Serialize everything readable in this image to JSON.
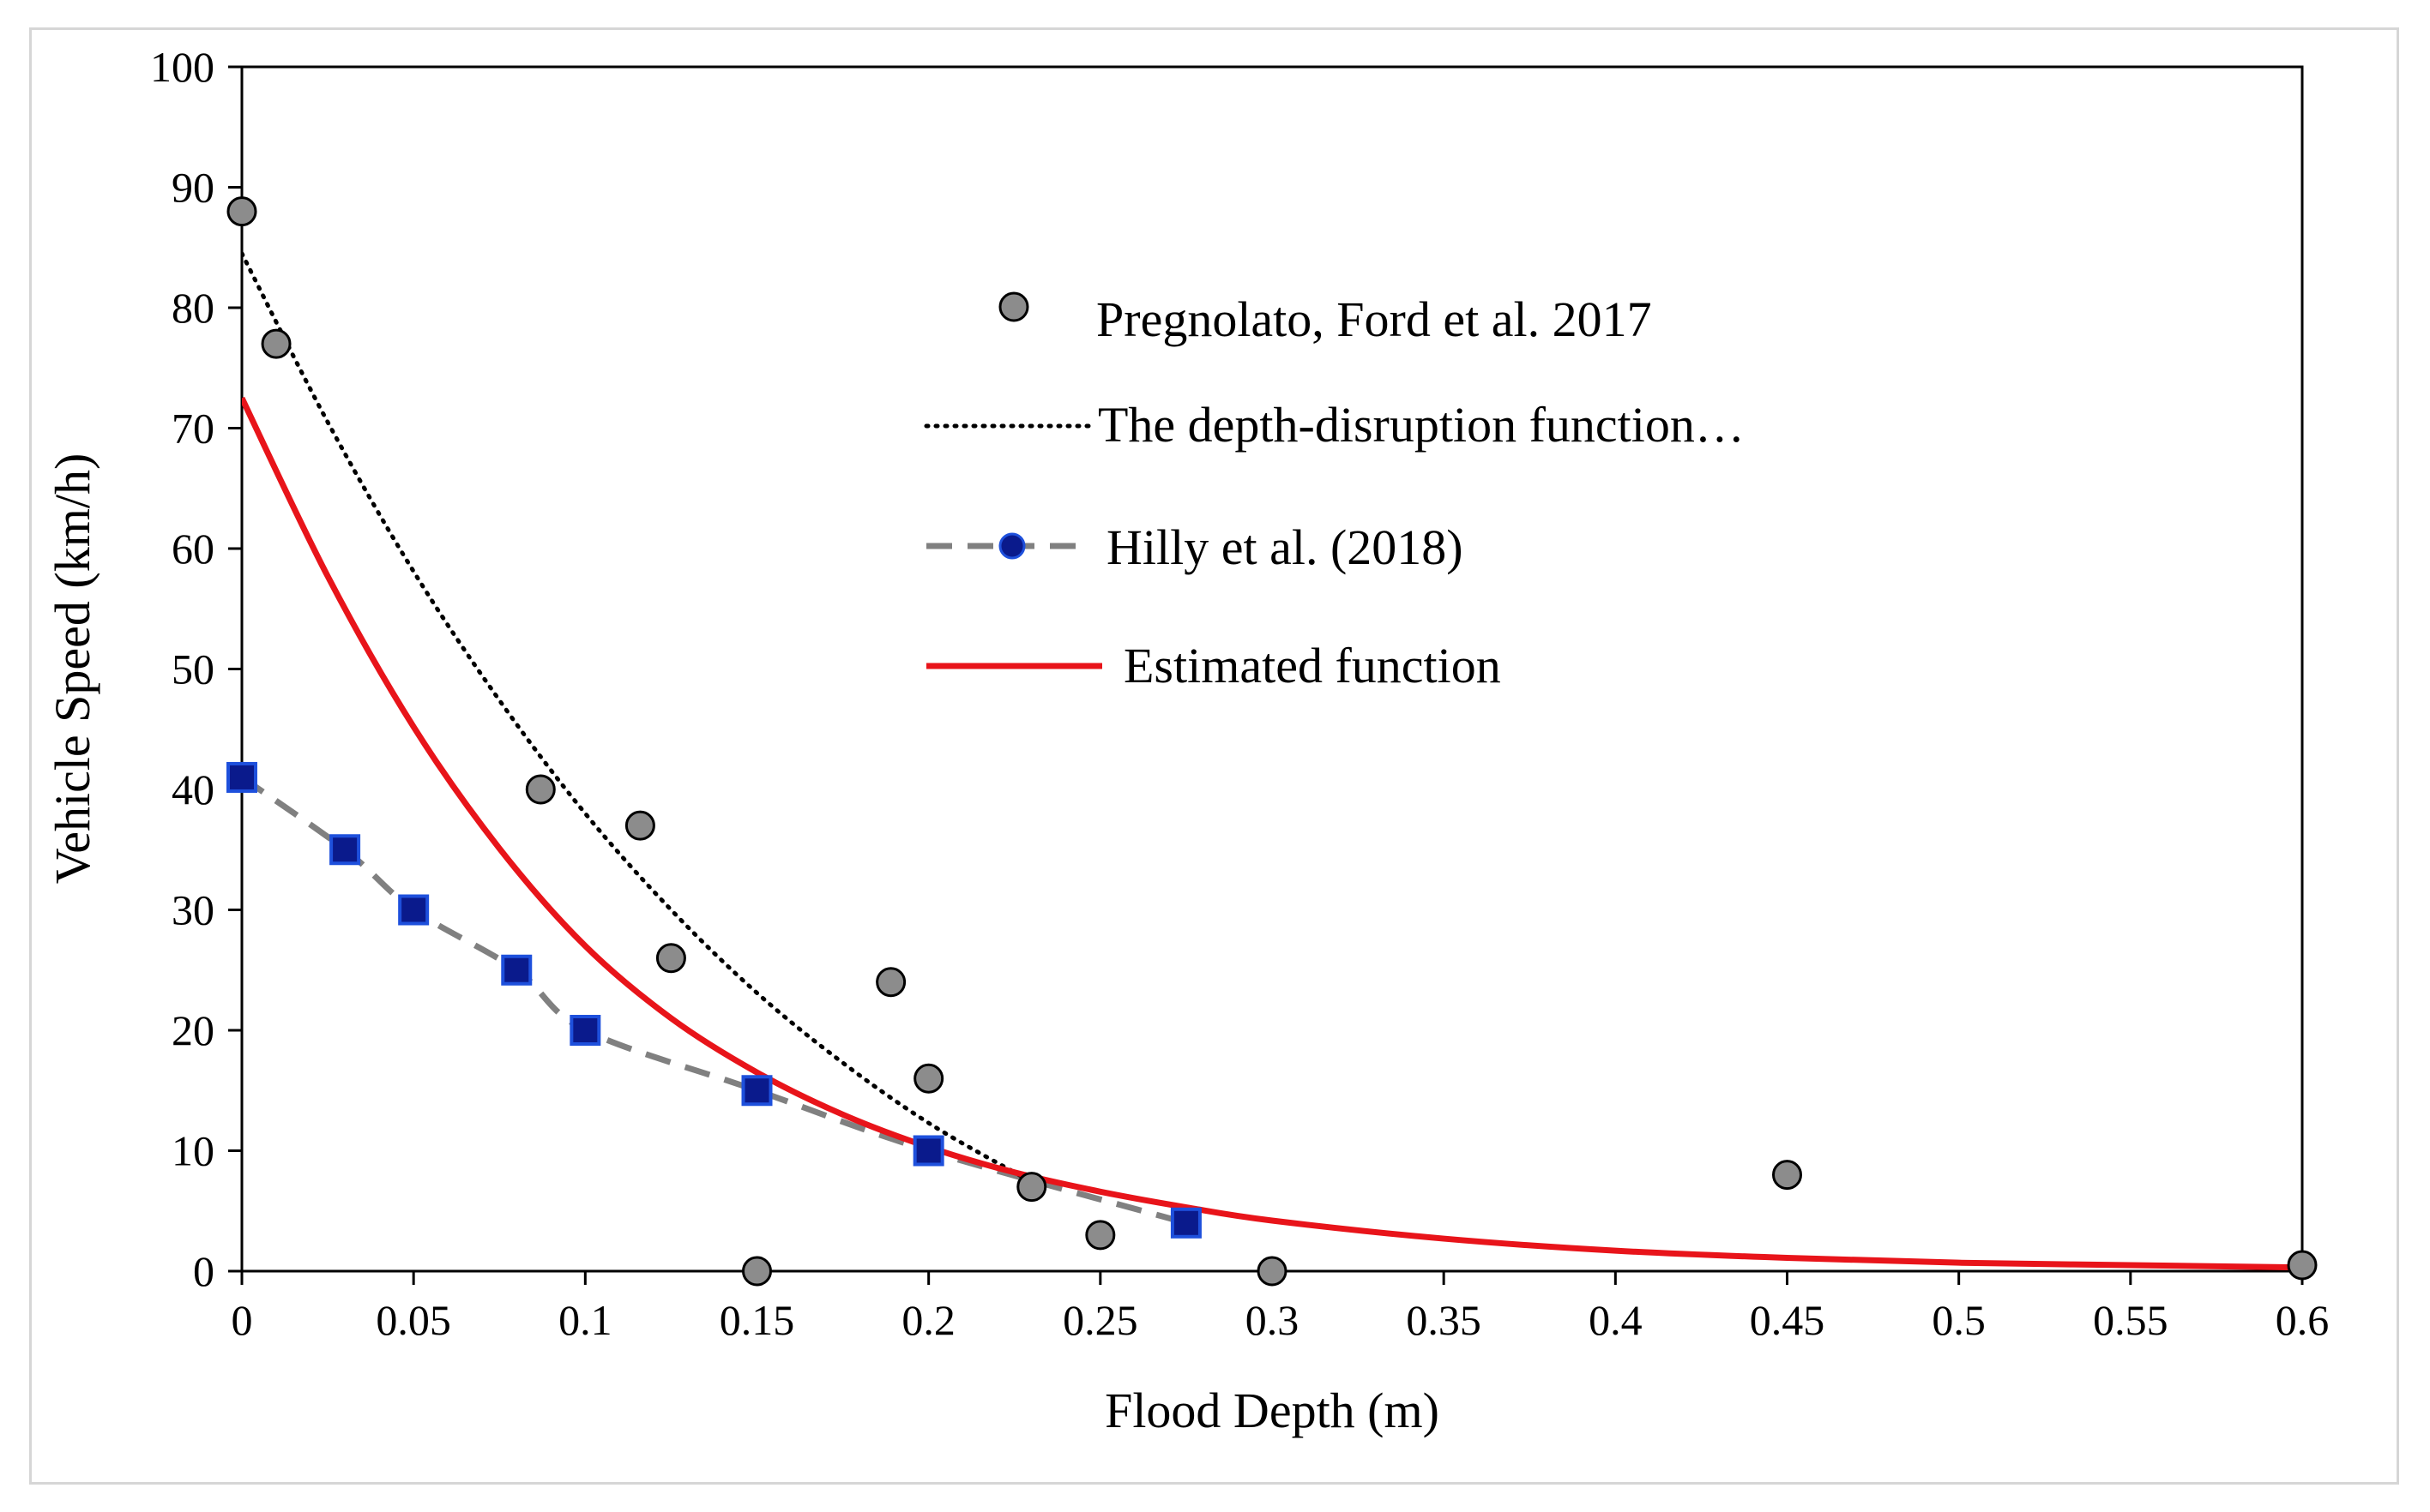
{
  "chart_data": {
    "type": "scatter",
    "title": "",
    "xlabel": "Flood Depth (m)",
    "ylabel": "Vehicle Speed (km/h)",
    "xlim": [
      0,
      0.6
    ],
    "ylim": [
      0,
      100
    ],
    "xticks": [
      0,
      0.05,
      0.1,
      0.15,
      0.2,
      0.25,
      0.3,
      0.35,
      0.4,
      0.45,
      0.5,
      0.55,
      0.6
    ],
    "xtick_labels": [
      "0",
      "0.05",
      "0.1",
      "0.15",
      "0.2",
      "0.25",
      "0.3",
      "0.35",
      "0.4",
      "0.45",
      "0.5",
      "0.55",
      "0.6"
    ],
    "yticks": [
      0,
      10,
      20,
      30,
      40,
      50,
      60,
      70,
      80,
      90,
      100
    ],
    "ytick_labels": [
      "0",
      "10",
      "20",
      "30",
      "40",
      "50",
      "60",
      "70",
      "80",
      "90",
      "100"
    ],
    "grid": false,
    "legend_position": "upper-middle",
    "series": [
      {
        "name": "Pregnolato, Ford et al. 2017",
        "kind": "scatter",
        "marker": "circle",
        "color": "#8c8c8c",
        "x": [
          0,
          0.01,
          0.087,
          0.116,
          0.125,
          0.15,
          0.189,
          0.2,
          0.23,
          0.25,
          0.3,
          0.45,
          0.6
        ],
        "y": [
          88,
          77,
          40,
          37,
          26,
          0,
          24,
          16,
          7,
          3,
          0,
          8,
          0.5
        ]
      },
      {
        "name": "The depth-disruption function…",
        "kind": "line",
        "style": "dotted",
        "color": "#000000",
        "x": [
          0,
          0.025,
          0.05,
          0.075,
          0.1,
          0.125,
          0.15,
          0.175,
          0.2,
          0.225,
          0.23
        ],
        "y": [
          84.5,
          70.5,
          58.1,
          47.4,
          38.0,
          30.0,
          23.1,
          17.3,
          12.3,
          8.2,
          7.5
        ]
      },
      {
        "name": "Hilly et al. (2018)",
        "kind": "line+markers",
        "style": "dashed",
        "marker": "square",
        "color": "#808080",
        "marker_color": "#1428a0",
        "x": [
          0,
          0.03,
          0.05,
          0.08,
          0.1,
          0.15,
          0.2,
          0.275
        ],
        "y": [
          41,
          35,
          30,
          25,
          20,
          15,
          10,
          4
        ]
      },
      {
        "name": "Estimated function",
        "kind": "line",
        "style": "solid",
        "color": "#e8141a",
        "x": [
          0,
          0.025,
          0.05,
          0.075,
          0.1,
          0.125,
          0.15,
          0.175,
          0.2,
          0.225,
          0.25,
          0.275,
          0.3,
          0.35,
          0.4,
          0.45,
          0.5,
          0.55,
          0.6
        ],
        "y": [
          72.5,
          57.7,
          45.2,
          35.1,
          27.0,
          21.0,
          16.5,
          13.0,
          10.3,
          8.2,
          6.6,
          5.3,
          4.2,
          2.7,
          1.7,
          1.1,
          0.7,
          0.5,
          0.3
        ]
      }
    ]
  }
}
